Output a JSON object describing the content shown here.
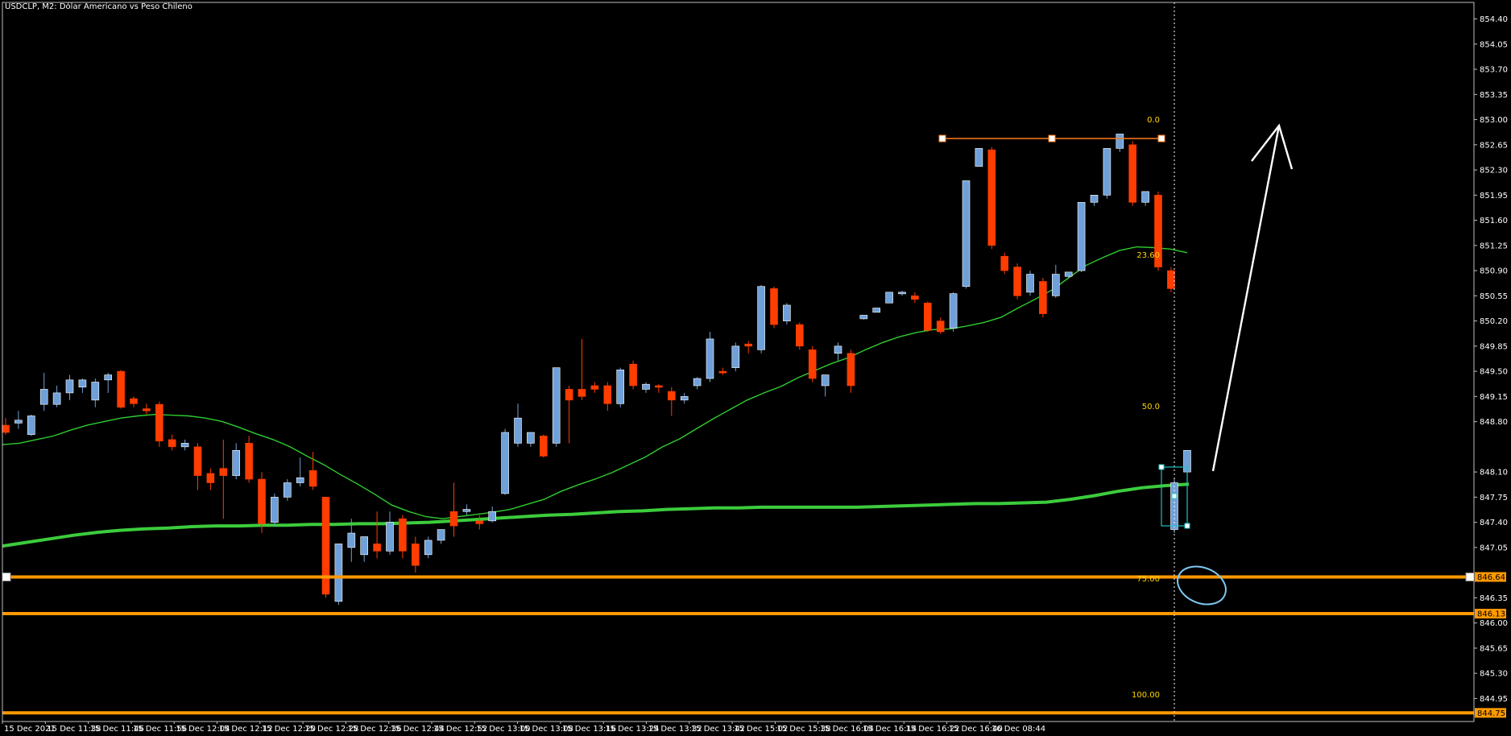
{
  "title": "USDCLP, M2:  Dólar Americano vs Peso Chileno",
  "colors": {
    "background": "#000000",
    "axis": "#c0c0c0",
    "bull": "#6fa0d8",
    "bear": "#ff3d00",
    "ma_fast": "#2ecc2e",
    "ma_slow": "#3ccc3c",
    "level": "#ff9900",
    "fib": "#ffd700",
    "trend": "#ff7a1a",
    "box": "#20c0c8",
    "ellipse": "#7ec8f0",
    "arrow": "#ffffff"
  },
  "chart_data": {
    "type": "candlestick",
    "ylim": [
      844.63,
      854.63
    ],
    "grid": false,
    "y_ticks": [
      "854.40",
      "854.05",
      "853.70",
      "853.35",
      "853.00",
      "852.65",
      "852.30",
      "851.95",
      "851.60",
      "851.25",
      "850.90",
      "850.55",
      "850.20",
      "849.85",
      "849.50",
      "849.15",
      "848.80",
      "848.10",
      "847.75",
      "847.40",
      "847.05",
      "846.35",
      "846.00",
      "845.65",
      "845.30",
      "844.95"
    ],
    "x_labels": [
      "15 Dec 2021",
      "15 Dec 11:38",
      "15 Dec 11:46",
      "15 Dec 11:56",
      "15 Dec 12:04",
      "15 Dec 12:12",
      "15 Dec 12:20",
      "15 Dec 12:28",
      "15 Dec 12:36",
      "15 Dec 12:44",
      "15 Dec 12:52",
      "15 Dec 13:00",
      "15 Dec 13:08",
      "15 Dec 13:16",
      "15 Dec 13:24",
      "15 Dec 13:32",
      "15 Dec 13:42",
      "15 Dec 15:02",
      "15 Dec 15:38",
      "15 Dec 16:04",
      "15 Dec 16:14",
      "15 Dec 16:22",
      "15 Dec 16:40",
      "16 Dec 08:44"
    ],
    "candles": [
      {
        "o": 848.75,
        "h": 848.85,
        "c": 848.65,
        "l": 848.62
      },
      {
        "o": 848.78,
        "h": 848.95,
        "c": 848.82,
        "l": 848.7
      },
      {
        "o": 848.62,
        "h": 848.9,
        "c": 848.88,
        "l": 848.6
      },
      {
        "o": 849.04,
        "h": 849.48,
        "c": 849.25,
        "l": 848.95
      },
      {
        "o": 849.04,
        "h": 849.3,
        "c": 849.2,
        "l": 849.0
      },
      {
        "o": 849.2,
        "h": 849.45,
        "c": 849.38,
        "l": 849.1
      },
      {
        "o": 849.28,
        "h": 849.4,
        "c": 849.38,
        "l": 849.2
      },
      {
        "o": 849.1,
        "h": 849.4,
        "c": 849.35,
        "l": 849.0
      },
      {
        "o": 849.38,
        "h": 849.48,
        "c": 849.45,
        "l": 849.2
      },
      {
        "o": 849.5,
        "h": 849.52,
        "c": 849.0,
        "l": 848.98
      },
      {
        "o": 849.12,
        "h": 849.15,
        "c": 849.05,
        "l": 849.0
      },
      {
        "o": 848.98,
        "h": 849.05,
        "c": 848.95,
        "l": 848.9
      },
      {
        "o": 849.04,
        "h": 849.08,
        "c": 848.53,
        "l": 848.45
      },
      {
        "o": 848.55,
        "h": 848.62,
        "c": 848.45,
        "l": 848.4
      },
      {
        "o": 848.45,
        "h": 848.55,
        "c": 848.5,
        "l": 848.4
      },
      {
        "o": 848.45,
        "h": 848.5,
        "c": 848.05,
        "l": 847.85
      },
      {
        "o": 848.08,
        "h": 848.15,
        "c": 847.95,
        "l": 847.85
      },
      {
        "o": 848.15,
        "h": 848.55,
        "c": 848.05,
        "l": 847.45
      },
      {
        "o": 848.05,
        "h": 848.5,
        "c": 848.4,
        "l": 848.0
      },
      {
        "o": 848.5,
        "h": 848.6,
        "c": 848.0,
        "l": 847.95
      },
      {
        "o": 848.0,
        "h": 848.1,
        "c": 847.38,
        "l": 847.25
      },
      {
        "o": 847.4,
        "h": 847.8,
        "c": 847.75,
        "l": 847.35
      },
      {
        "o": 847.75,
        "h": 848.0,
        "c": 847.95,
        "l": 847.7
      },
      {
        "o": 847.95,
        "h": 848.3,
        "c": 848.02,
        "l": 847.9
      },
      {
        "o": 848.12,
        "h": 848.38,
        "c": 847.9,
        "l": 847.85
      },
      {
        "o": 847.75,
        "h": 847.75,
        "c": 846.4,
        "l": 846.35
      },
      {
        "o": 846.3,
        "h": 847.1,
        "c": 847.1,
        "l": 846.25
      },
      {
        "o": 847.05,
        "h": 847.45,
        "c": 847.25,
        "l": 846.85
      },
      {
        "o": 846.95,
        "h": 847.2,
        "c": 847.2,
        "l": 846.85
      },
      {
        "o": 847.1,
        "h": 847.55,
        "c": 847.0,
        "l": 846.9
      },
      {
        "o": 847.0,
        "h": 847.55,
        "c": 847.4,
        "l": 846.95
      },
      {
        "o": 847.45,
        "h": 847.5,
        "c": 847.0,
        "l": 846.9
      },
      {
        "o": 847.1,
        "h": 847.2,
        "c": 846.8,
        "l": 846.7
      },
      {
        "o": 846.95,
        "h": 847.2,
        "c": 847.15,
        "l": 846.9
      },
      {
        "o": 847.15,
        "h": 847.3,
        "c": 847.3,
        "l": 847.1
      },
      {
        "o": 847.55,
        "h": 847.95,
        "c": 847.35,
        "l": 847.2
      },
      {
        "o": 847.55,
        "h": 847.65,
        "c": 847.58,
        "l": 847.5
      },
      {
        "o": 847.42,
        "h": 847.5,
        "c": 847.38,
        "l": 847.3
      },
      {
        "o": 847.42,
        "h": 847.62,
        "c": 847.55,
        "l": 847.4
      },
      {
        "o": 847.8,
        "h": 848.7,
        "c": 848.65,
        "l": 847.78
      },
      {
        "o": 848.5,
        "h": 849.05,
        "c": 848.85,
        "l": 848.45
      },
      {
        "o": 848.5,
        "h": 848.65,
        "c": 848.65,
        "l": 848.45
      },
      {
        "o": 848.6,
        "h": 848.62,
        "c": 848.32,
        "l": 848.3
      },
      {
        "o": 848.5,
        "h": 849.55,
        "c": 849.55,
        "l": 848.45
      },
      {
        "o": 849.25,
        "h": 849.3,
        "c": 849.1,
        "l": 848.5
      },
      {
        "o": 849.25,
        "h": 849.95,
        "c": 849.15,
        "l": 849.1
      },
      {
        "o": 849.3,
        "h": 849.35,
        "c": 849.25,
        "l": 849.2
      },
      {
        "o": 849.3,
        "h": 849.35,
        "c": 849.05,
        "l": 848.95
      },
      {
        "o": 849.05,
        "h": 849.55,
        "c": 849.52,
        "l": 849.0
      },
      {
        "o": 849.6,
        "h": 849.65,
        "c": 849.3,
        "l": 849.25
      },
      {
        "o": 849.25,
        "h": 849.35,
        "c": 849.32,
        "l": 849.2
      },
      {
        "o": 849.3,
        "h": 849.32,
        "c": 849.28,
        "l": 849.2
      },
      {
        "o": 849.22,
        "h": 849.28,
        "c": 849.1,
        "l": 848.88
      },
      {
        "o": 849.1,
        "h": 849.2,
        "c": 849.15,
        "l": 849.05
      },
      {
        "o": 849.3,
        "h": 849.42,
        "c": 849.4,
        "l": 849.25
      },
      {
        "o": 849.4,
        "h": 850.05,
        "c": 849.95,
        "l": 849.35
      },
      {
        "o": 849.5,
        "h": 849.55,
        "c": 849.48,
        "l": 849.45
      },
      {
        "o": 849.55,
        "h": 849.9,
        "c": 849.85,
        "l": 849.5
      },
      {
        "o": 849.88,
        "h": 849.92,
        "c": 849.85,
        "l": 849.75
      },
      {
        "o": 849.8,
        "h": 850.7,
        "c": 850.68,
        "l": 849.75
      },
      {
        "o": 850.65,
        "h": 850.68,
        "c": 850.15,
        "l": 850.1
      },
      {
        "o": 850.2,
        "h": 850.45,
        "c": 850.42,
        "l": 850.15
      },
      {
        "o": 850.15,
        "h": 850.18,
        "c": 849.85,
        "l": 849.8
      },
      {
        "o": 849.8,
        "h": 849.85,
        "c": 849.4,
        "l": 849.35
      },
      {
        "o": 849.3,
        "h": 849.45,
        "c": 849.45,
        "l": 849.15
      },
      {
        "o": 849.75,
        "h": 849.9,
        "c": 849.85,
        "l": 849.65
      },
      {
        "o": 849.75,
        "h": 849.8,
        "c": 849.3,
        "l": 849.2
      },
      {
        "o": 850.23,
        "h": 850.28,
        "c": 850.28,
        "l": 850.22
      },
      {
        "o": 850.32,
        "h": 850.38,
        "c": 850.38,
        "l": 850.32
      },
      {
        "o": 850.45,
        "h": 850.6,
        "c": 850.6,
        "l": 850.45
      },
      {
        "o": 850.58,
        "h": 850.62,
        "c": 850.6,
        "l": 850.55
      },
      {
        "o": 850.55,
        "h": 850.6,
        "c": 850.5,
        "l": 850.45
      },
      {
        "o": 850.45,
        "h": 850.47,
        "c": 850.07,
        "l": 850.05
      },
      {
        "o": 850.2,
        "h": 850.25,
        "c": 850.05,
        "l": 850.02
      },
      {
        "o": 850.1,
        "h": 850.6,
        "c": 850.58,
        "l": 850.05
      },
      {
        "o": 850.68,
        "h": 852.15,
        "c": 852.15,
        "l": 850.65
      },
      {
        "o": 852.35,
        "h": 852.6,
        "c": 852.6,
        "l": 852.35
      },
      {
        "o": 852.58,
        "h": 852.62,
        "c": 851.25,
        "l": 851.2
      },
      {
        "o": 851.1,
        "h": 851.15,
        "c": 850.9,
        "l": 850.85
      },
      {
        "o": 850.95,
        "h": 851.0,
        "c": 850.55,
        "l": 850.5
      },
      {
        "o": 850.6,
        "h": 850.9,
        "c": 850.85,
        "l": 850.55
      },
      {
        "o": 850.75,
        "h": 850.8,
        "c": 850.3,
        "l": 850.25
      },
      {
        "o": 850.55,
        "h": 850.98,
        "c": 850.85,
        "l": 850.52
      },
      {
        "o": 850.82,
        "h": 850.88,
        "c": 850.88,
        "l": 850.8
      },
      {
        "o": 850.9,
        "h": 851.85,
        "c": 851.85,
        "l": 850.88
      },
      {
        "o": 851.85,
        "h": 851.95,
        "c": 851.95,
        "l": 851.8
      },
      {
        "o": 851.95,
        "h": 852.6,
        "c": 852.6,
        "l": 851.9
      },
      {
        "o": 852.6,
        "h": 852.8,
        "c": 852.8,
        "l": 852.55
      },
      {
        "o": 852.65,
        "h": 852.7,
        "c": 851.85,
        "l": 851.8
      },
      {
        "o": 851.85,
        "h": 852.0,
        "c": 852.0,
        "l": 851.8
      },
      {
        "o": 851.95,
        "h": 852.0,
        "c": 850.95,
        "l": 850.9
      },
      {
        "o": 850.9,
        "h": 850.95,
        "c": 850.65,
        "l": 850.6
      },
      {
        "o": 847.3,
        "h": 848.0,
        "c": 847.95,
        "l": 847.25
      },
      {
        "o": 848.1,
        "h": 848.4,
        "c": 848.4,
        "l": 848.0
      }
    ],
    "ma_fast": [
      848.48,
      848.5,
      848.55,
      848.6,
      848.68,
      848.75,
      848.8,
      848.85,
      848.88,
      848.9,
      848.89,
      848.88,
      848.85,
      848.8,
      848.72,
      848.63,
      848.55,
      848.45,
      848.32,
      848.2,
      848.06,
      847.93,
      847.79,
      847.64,
      847.55,
      847.48,
      847.45,
      847.48,
      847.51,
      847.54,
      847.58,
      847.65,
      847.72,
      847.83,
      847.92,
      848.0,
      848.09,
      848.2,
      848.31,
      848.45,
      848.56,
      848.7,
      848.84,
      848.97,
      849.1,
      849.2,
      849.29,
      849.41,
      849.51,
      849.61,
      849.69,
      849.8,
      849.9,
      849.98,
      850.04,
      850.08,
      850.09,
      850.13,
      850.18,
      850.25,
      850.38,
      850.5,
      850.63,
      850.8,
      850.97,
      851.08,
      851.18,
      851.23,
      851.22,
      851.2,
      851.15
    ],
    "ma_slow": [
      847.07,
      847.12,
      847.17,
      847.22,
      847.26,
      847.29,
      847.31,
      847.32,
      847.34,
      847.35,
      847.35,
      847.36,
      847.36,
      847.37,
      847.37,
      847.38,
      847.38,
      847.39,
      847.4,
      847.42,
      847.44,
      847.46,
      847.48,
      847.5,
      847.51,
      847.53,
      847.55,
      847.56,
      847.58,
      847.59,
      847.6,
      847.6,
      847.61,
      847.61,
      847.61,
      847.61,
      847.61,
      847.62,
      847.63,
      847.64,
      847.65,
      847.66,
      847.66,
      847.67,
      847.68,
      847.72,
      847.77,
      847.83,
      847.88,
      847.91,
      847.93
    ],
    "levels": [
      {
        "value": "846.64"
      },
      {
        "value": "846.13"
      },
      {
        "value": "844.75"
      }
    ],
    "fib_labels": [
      "0.0",
      "23.60",
      "50.0",
      "75.00",
      "100.00"
    ]
  }
}
